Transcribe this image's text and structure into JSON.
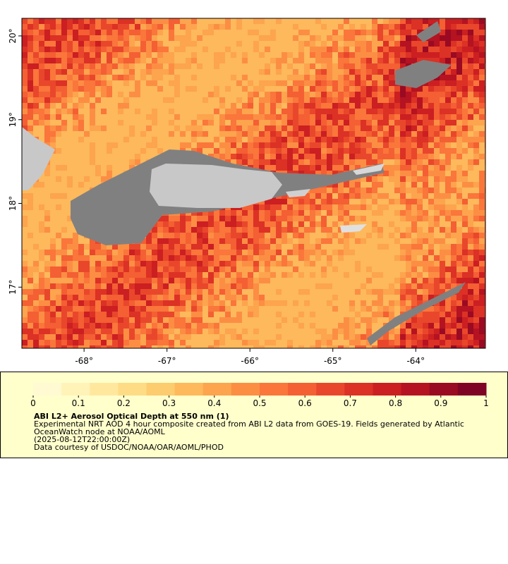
{
  "chart_data": {
    "type": "map",
    "title": "ABI L2+ Aerosol Optical Depth at 550 nm (1)",
    "description": [
      "Experimental NRT AOD 4 hour composite created from ABI L2 data from GOES-19. Fields generated by Atlantic",
      "OceanWatch node at NOAA/AOML",
      "(2025-08-12T22:00:00Z)",
      "Data courtesy of USDOC/NOAA/OAR/AOML/PHOD"
    ],
    "xlim": [
      -68.75,
      -63.16
    ],
    "ylim": [
      16.27,
      20.21
    ],
    "xticks": [
      {
        "value": -68,
        "label": "-68°"
      },
      {
        "value": -67,
        "label": "-67°"
      },
      {
        "value": -66,
        "label": "-66°"
      },
      {
        "value": -65,
        "label": "-65°"
      },
      {
        "value": -64,
        "label": "-64°"
      }
    ],
    "yticks": [
      {
        "value": 17,
        "label": "17°"
      },
      {
        "value": 18,
        "label": "18°"
      },
      {
        "value": 19,
        "label": "19°"
      },
      {
        "value": 20,
        "label": "20°"
      }
    ],
    "colorbar": {
      "lim": [
        0,
        1
      ],
      "ticks": [
        0,
        0.1,
        0.2,
        0.3,
        0.4,
        0.5,
        0.6,
        0.7,
        0.8,
        0.9,
        1
      ],
      "colors": [
        "#fffad2",
        "#fff3b8",
        "#ffe89e",
        "#fedc85",
        "#fdcc6e",
        "#fdb95c",
        "#fda44e",
        "#fc8e44",
        "#fa763b",
        "#f45f33",
        "#e9472b",
        "#dc3125",
        "#cb1f22",
        "#b51321",
        "#9a0a22",
        "#7f0325"
      ]
    }
  }
}
